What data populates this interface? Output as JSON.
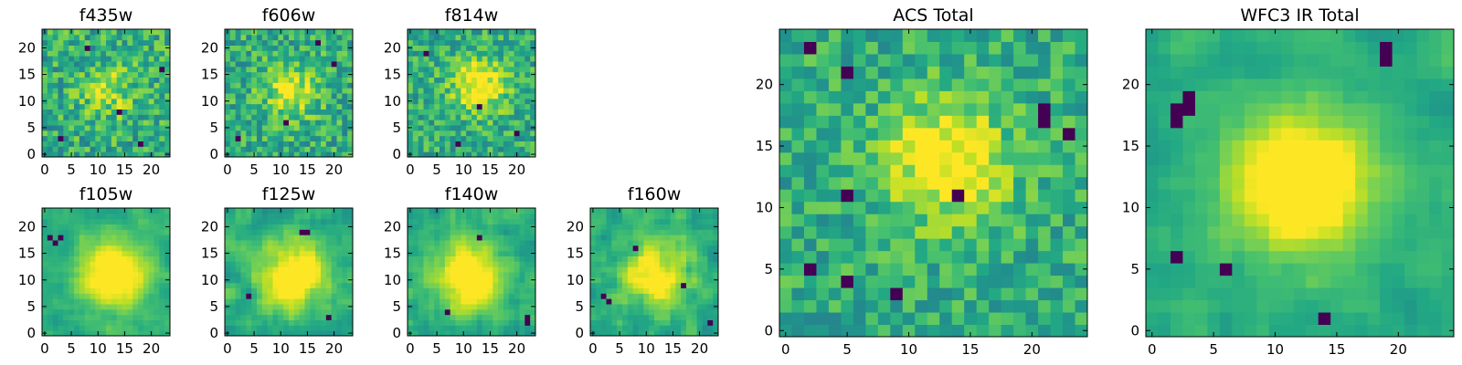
{
  "chart_data": [
    {
      "type": "heatmap",
      "title": "f435w",
      "pixels": 24,
      "xticks": [
        "0",
        "5",
        "10",
        "15",
        "20"
      ],
      "yticks": [
        "0",
        "5",
        "10",
        "15",
        "20"
      ],
      "colormap": "viridis",
      "seed": 11,
      "blob": {
        "x": 12,
        "y": 12,
        "sigma": 3.5,
        "amp": 0.25
      },
      "noise": 0.95,
      "smooth": 0,
      "dark": [
        [
          3,
          3
        ],
        [
          18,
          2
        ],
        [
          8,
          20
        ],
        [
          14,
          8
        ],
        [
          22,
          16
        ]
      ]
    },
    {
      "type": "heatmap",
      "title": "f606w",
      "pixels": 24,
      "xticks": [
        "0",
        "5",
        "10",
        "15",
        "20"
      ],
      "yticks": [
        "0",
        "5",
        "10",
        "15",
        "20"
      ],
      "colormap": "viridis",
      "seed": 23,
      "blob": {
        "x": 12,
        "y": 12,
        "sigma": 3.5,
        "amp": 0.35
      },
      "noise": 0.9,
      "smooth": 0,
      "dark": [
        [
          2,
          3
        ],
        [
          20,
          17
        ],
        [
          11,
          6
        ],
        [
          17,
          21
        ]
      ]
    },
    {
      "type": "heatmap",
      "title": "f814w",
      "pixels": 24,
      "xticks": [
        "0",
        "5",
        "10",
        "15",
        "20"
      ],
      "yticks": [
        "0",
        "5",
        "10",
        "15",
        "20"
      ],
      "colormap": "viridis",
      "seed": 37,
      "blob": {
        "x": 13,
        "y": 13,
        "sigma": 3.5,
        "amp": 0.45
      },
      "noise": 0.85,
      "smooth": 0,
      "dark": [
        [
          9,
          2
        ],
        [
          20,
          4
        ],
        [
          3,
          19
        ],
        [
          13,
          9
        ]
      ]
    },
    {
      "type": "heatmap",
      "title": "f105w",
      "pixels": 24,
      "xticks": [
        "0",
        "5",
        "10",
        "15",
        "20"
      ],
      "yticks": [
        "0",
        "5",
        "10",
        "15",
        "20"
      ],
      "colormap": "viridis",
      "seed": 41,
      "blob": {
        "x": 13,
        "y": 11,
        "sigma": 4.5,
        "amp": 0.55
      },
      "noise": 0.45,
      "smooth": 1,
      "dark": [
        [
          2,
          17
        ],
        [
          3,
          18
        ],
        [
          1,
          18
        ]
      ]
    },
    {
      "type": "heatmap",
      "title": "f125w",
      "pixels": 24,
      "xticks": [
        "0",
        "5",
        "10",
        "15",
        "20"
      ],
      "yticks": [
        "0",
        "5",
        "10",
        "15",
        "20"
      ],
      "colormap": "viridis",
      "seed": 53,
      "blob": {
        "x": 12,
        "y": 11,
        "sigma": 4.5,
        "amp": 0.5
      },
      "noise": 0.6,
      "smooth": 1,
      "dark": [
        [
          14,
          19
        ],
        [
          15,
          19
        ],
        [
          4,
          7
        ],
        [
          19,
          3
        ]
      ]
    },
    {
      "type": "heatmap",
      "title": "f140w",
      "pixels": 24,
      "xticks": [
        "0",
        "5",
        "10",
        "15",
        "20"
      ],
      "yticks": [
        "0",
        "5",
        "10",
        "15",
        "20"
      ],
      "colormap": "viridis",
      "seed": 67,
      "blob": {
        "x": 11,
        "y": 11,
        "sigma": 4.5,
        "amp": 0.55
      },
      "noise": 0.55,
      "smooth": 1,
      "dark": [
        [
          22,
          2
        ],
        [
          22,
          3
        ],
        [
          13,
          18
        ],
        [
          7,
          4
        ]
      ]
    },
    {
      "type": "heatmap",
      "title": "f160w",
      "pixels": 24,
      "xticks": [
        "0",
        "5",
        "10",
        "15",
        "20"
      ],
      "yticks": [
        "0",
        "5",
        "10",
        "15",
        "20"
      ],
      "colormap": "viridis",
      "seed": 79,
      "blob": {
        "x": 12,
        "y": 11,
        "sigma": 4.5,
        "amp": 0.45
      },
      "noise": 0.7,
      "smooth": 1,
      "dark": [
        [
          3,
          6
        ],
        [
          2,
          7
        ],
        [
          22,
          2
        ],
        [
          8,
          16
        ],
        [
          17,
          9
        ]
      ]
    },
    {
      "type": "heatmap",
      "title": "ACS Total",
      "pixels": 25,
      "xticks": [
        "0",
        "5",
        "10",
        "15",
        "20"
      ],
      "yticks": [
        "0",
        "5",
        "10",
        "15",
        "20"
      ],
      "colormap": "viridis",
      "seed": 97,
      "blob": {
        "x": 13,
        "y": 14,
        "sigma": 3.5,
        "amp": 0.45
      },
      "noise": 0.75,
      "smooth": 0,
      "dark": [
        [
          5,
          21
        ],
        [
          2,
          23
        ],
        [
          5,
          11
        ],
        [
          21,
          18
        ],
        [
          21,
          17
        ],
        [
          23,
          16
        ],
        [
          14,
          11
        ],
        [
          9,
          3
        ],
        [
          2,
          5
        ],
        [
          5,
          4
        ]
      ]
    },
    {
      "type": "heatmap",
      "title": "WFC3 IR Total",
      "pixels": 25,
      "xticks": [
        "0",
        "5",
        "10",
        "15",
        "20"
      ],
      "yticks": [
        "0",
        "5",
        "10",
        "15",
        "20"
      ],
      "colormap": "viridis",
      "seed": 113,
      "blob": {
        "x": 12,
        "y": 12,
        "sigma": 4,
        "amp": 0.6
      },
      "noise": 0.4,
      "smooth": 1,
      "dark": [
        [
          3,
          19
        ],
        [
          2,
          18
        ],
        [
          3,
          18
        ],
        [
          2,
          17
        ],
        [
          19,
          23
        ],
        [
          19,
          22
        ],
        [
          2,
          6
        ],
        [
          14,
          1
        ],
        [
          6,
          5
        ]
      ]
    }
  ]
}
